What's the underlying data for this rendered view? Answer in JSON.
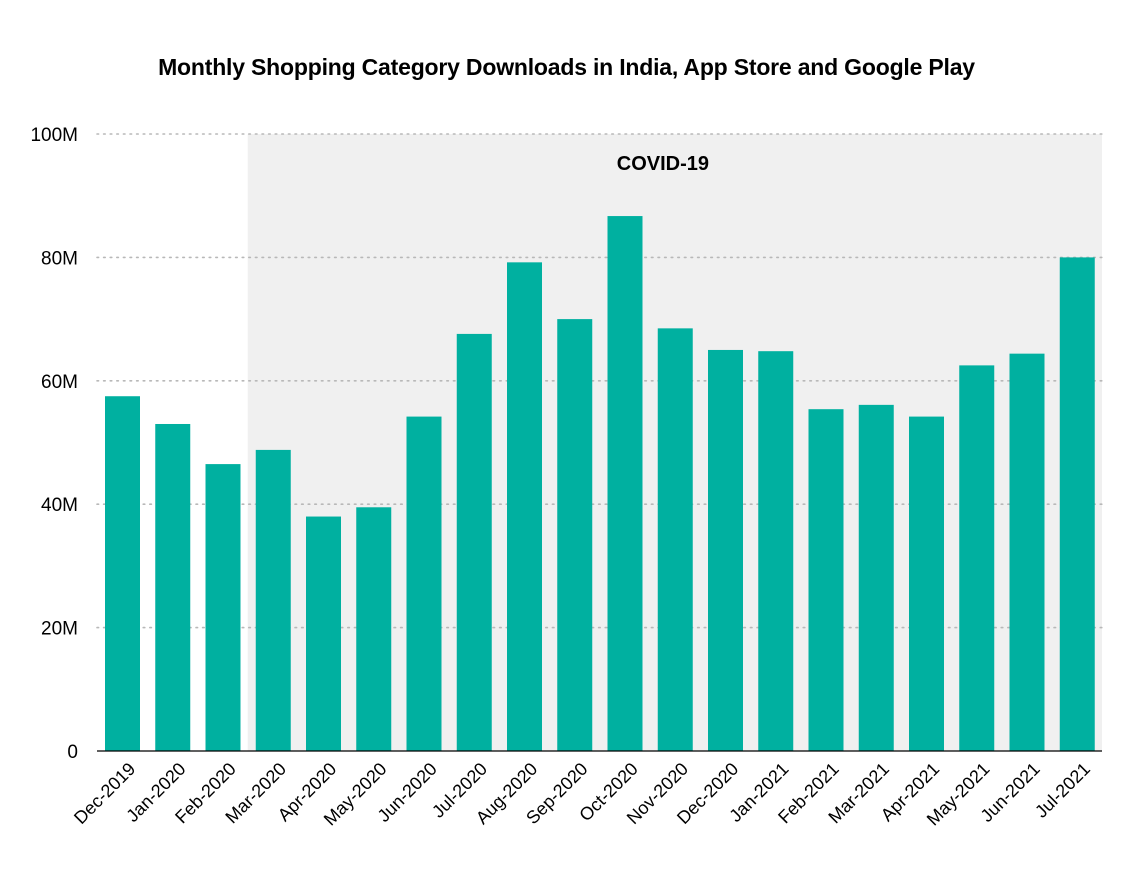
{
  "chart_data": {
    "type": "bar",
    "title": "Monthly Shopping Category Downloads in India, App Store and Google Play",
    "xlabel": "",
    "ylabel": "",
    "categories": [
      "Dec-2019",
      "Jan-2020",
      "Feb-2020",
      "Mar-2020",
      "Apr-2020",
      "May-2020",
      "Jun-2020",
      "Jul-2020",
      "Aug-2020",
      "Sep-2020",
      "Oct-2020",
      "Nov-2020",
      "Dec-2020",
      "Jan-2021",
      "Feb-2021",
      "Mar-2021",
      "Apr-2021",
      "May-2021",
      "Jun-2021",
      "Jul-2021"
    ],
    "values": [
      57.5,
      53,
      46.5,
      48.8,
      38,
      39.5,
      54.2,
      67.6,
      79.2,
      70,
      86.7,
      68.5,
      65,
      64.8,
      55.4,
      56.1,
      54.2,
      62.5,
      64.4,
      80
    ],
    "unit": "M",
    "ylim": [
      0,
      100
    ],
    "yticks": [
      0,
      20,
      40,
      60,
      80,
      100
    ],
    "ytick_labels": [
      "0",
      "20M",
      "40M",
      "60M",
      "80M",
      "100M"
    ],
    "grid": "horizontal dotted",
    "legend": "none",
    "bar_color": "#00b0a0",
    "annotations": [
      {
        "label": "COVID-19",
        "type": "shaded-region",
        "from": "Mar-2020",
        "to": "Jul-2021",
        "color": "#f0f0f0"
      }
    ]
  }
}
